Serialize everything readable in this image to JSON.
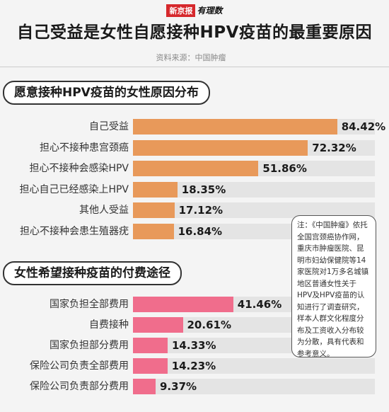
{
  "logo": {
    "brand": "新京报",
    "sub": "有理数"
  },
  "title": "自己受益是女性自愿接种HPV疫苗的最重要原因",
  "source": "资料来源：中国肿瘤",
  "note": "注：《中国肿瘤》依托全国宫颈癌协作网，重庆市肿瘤医院、昆明市妇幼保健院等14家医院对1万多名城镇地区普通女性关于HPV及HPV疫苗的认知进行了调查研究，样本人群文化程度分布及工资收入分布较为分散，具有代表和参考意义。",
  "colors": {
    "orange": "#e8995a",
    "pink": "#f06d8c",
    "track": "#e4e4e4"
  },
  "chart_data": [
    {
      "type": "bar",
      "orientation": "horizontal",
      "title": "愿意接种HPV疫苗的女性原因分布",
      "categories": [
        "自己受益",
        "担心不接种患宫颈癌",
        "担心不接种会感染HPV",
        "担心自己已经感染上HPV",
        "其他人受益",
        "担心不接种会患生殖器疣"
      ],
      "values": [
        84.42,
        72.32,
        51.86,
        18.35,
        17.12,
        16.84
      ],
      "value_labels": [
        "84.42%",
        "72.32%",
        "51.86%",
        "18.35%",
        "17.12%",
        "16.84%"
      ],
      "unit": "%",
      "xlim": [
        0,
        100
      ],
      "color": "#e8995a"
    },
    {
      "type": "bar",
      "orientation": "horizontal",
      "title": "女性希望接种疫苗的付费途径",
      "categories": [
        "国家负担全部费用",
        "自费接种",
        "国家负担部分费用",
        "保险公司负责全部费用",
        "保险公司负责部分费用"
      ],
      "values": [
        41.46,
        20.61,
        14.33,
        14.23,
        9.37
      ],
      "value_labels": [
        "41.46%",
        "20.61%",
        "14.33%",
        "14.23%",
        "9.37%"
      ],
      "unit": "%",
      "xlim": [
        0,
        100
      ],
      "color": "#f06d8c"
    }
  ]
}
